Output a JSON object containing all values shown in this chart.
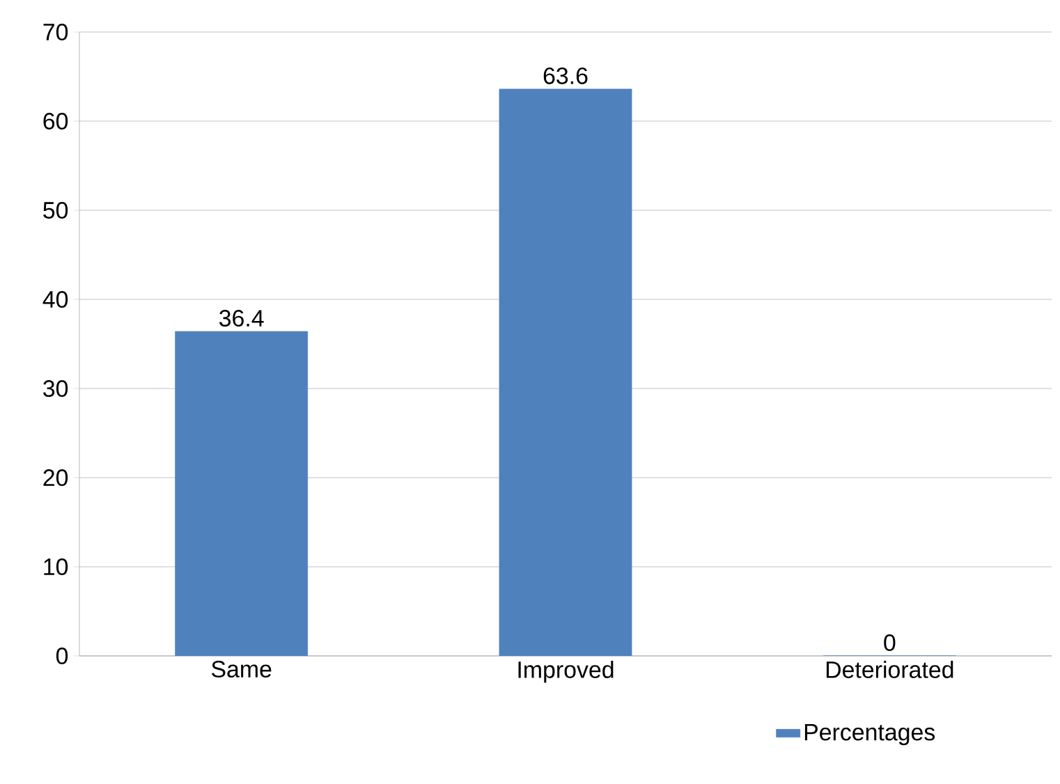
{
  "chart_data": {
    "type": "bar",
    "categories": [
      "Same",
      "Improved",
      "Deteriorated"
    ],
    "series": [
      {
        "name": "Percentages",
        "color": "#4f81bd",
        "values": [
          36.4,
          63.6,
          0
        ]
      }
    ],
    "ylim": [
      0,
      70
    ],
    "yticks": [
      0,
      10,
      20,
      30,
      40,
      50,
      60,
      70
    ],
    "grid": "y",
    "legend": "bottom",
    "data_labels": true
  }
}
